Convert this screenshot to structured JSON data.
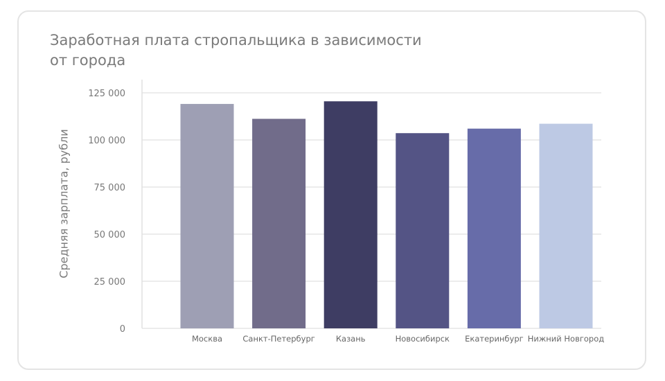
{
  "chart_data": {
    "type": "bar",
    "title": "Заработная плата стропальщика в зависимости от города",
    "title_lines": [
      "Заработная плата стропальщика в зависимости",
      "от города"
    ],
    "xlabel": "",
    "ylabel": "Средняя зарплата, рубли",
    "ylim": [
      0,
      125000
    ],
    "yticks": [
      0,
      25000,
      50000,
      75000,
      100000,
      125000
    ],
    "ytick_labels": [
      "0",
      "25 000",
      "50 000",
      "75 000",
      "100 000",
      "125 000"
    ],
    "grid": true,
    "categories": [
      "Москва",
      "Санкт-Петербург",
      "Казань",
      "Новосибирск",
      "Екатеринбург",
      "Нижний Новгород"
    ],
    "values": [
      119100,
      111200,
      120500,
      103600,
      106000,
      108600
    ],
    "colors": [
      "#9e9fb4",
      "#716c8a",
      "#3e3d63",
      "#545485",
      "#676ca9",
      "#bdc9e4"
    ]
  }
}
